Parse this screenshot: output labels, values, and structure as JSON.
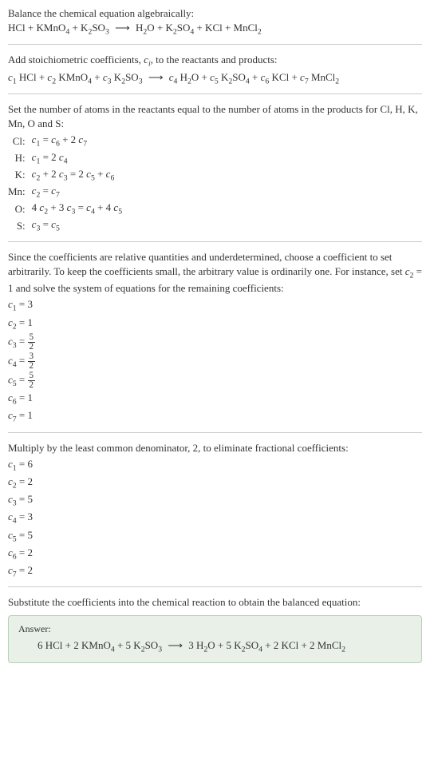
{
  "typography": {
    "font_family": "Georgia, serif",
    "base_font_size": 13,
    "text_color": "#333333",
    "background_color": "#ffffff",
    "divider_color": "#cccccc"
  },
  "answer_box_style": {
    "background_color": "#e8f0e8",
    "border_color": "#b8d0b8",
    "border_radius": 4
  },
  "section1": {
    "intro": "Balance the chemical equation algebraically:",
    "reaction": {
      "reactants": [
        "HCl",
        "KMnO₄",
        "K₂SO₃"
      ],
      "products": [
        "H₂O",
        "K₂SO₄",
        "KCl",
        "MnCl₂"
      ]
    }
  },
  "section2": {
    "intro_part1": "Add stoichiometric coefficients, ",
    "intro_var": "cᵢ",
    "intro_part2": ", to the reactants and products:",
    "reaction": {
      "reactant_coeffs": [
        "c₁",
        "c₂",
        "c₃"
      ],
      "reactants": [
        "HCl",
        "KMnO₄",
        "K₂SO₃"
      ],
      "product_coeffs": [
        "c₄",
        "c₅",
        "c₆",
        "c₇"
      ],
      "products": [
        "H₂O",
        "K₂SO₄",
        "KCl",
        "MnCl₂"
      ]
    }
  },
  "section3": {
    "intro": "Set the number of atoms in the reactants equal to the number of atoms in the products for Cl, H, K, Mn, O and S:",
    "equations": [
      {
        "label": "Cl:",
        "equation": "c₁ = c₆ + 2 c₇"
      },
      {
        "label": "H:",
        "equation": "c₁ = 2 c₄"
      },
      {
        "label": "K:",
        "equation": "c₂ + 2 c₃ = 2 c₅ + c₆"
      },
      {
        "label": "Mn:",
        "equation": "c₂ = c₇"
      },
      {
        "label": "O:",
        "equation": "4 c₂ + 3 c₃ = c₄ + 4 c₅"
      },
      {
        "label": "S:",
        "equation": "c₃ = c₅"
      }
    ]
  },
  "section4": {
    "intro_part1": "Since the coefficients are relative quantities and underdetermined, choose a coefficient to set arbitrarily. To keep the coefficients small, the arbitrary value is ordinarily one. For instance, set ",
    "intro_var": "c₂ = 1",
    "intro_part2": " and solve the system of equations for the remaining coefficients:",
    "coefficients": [
      {
        "var": "c₁",
        "value": "3",
        "is_frac": false
      },
      {
        "var": "c₂",
        "value": "1",
        "is_frac": false
      },
      {
        "var": "c₃",
        "num": "5",
        "den": "2",
        "is_frac": true
      },
      {
        "var": "c₄",
        "num": "3",
        "den": "2",
        "is_frac": true
      },
      {
        "var": "c₅",
        "num": "5",
        "den": "2",
        "is_frac": true
      },
      {
        "var": "c₆",
        "value": "1",
        "is_frac": false
      },
      {
        "var": "c₇",
        "value": "1",
        "is_frac": false
      }
    ]
  },
  "section5": {
    "intro": "Multiply by the least common denominator, 2, to eliminate fractional coefficients:",
    "coefficients": [
      {
        "var": "c₁",
        "value": "6"
      },
      {
        "var": "c₂",
        "value": "2"
      },
      {
        "var": "c₃",
        "value": "5"
      },
      {
        "var": "c₄",
        "value": "3"
      },
      {
        "var": "c₅",
        "value": "5"
      },
      {
        "var": "c₆",
        "value": "2"
      },
      {
        "var": "c₇",
        "value": "2"
      }
    ]
  },
  "section6": {
    "intro": "Substitute the coefficients into the chemical reaction to obtain the balanced equation:",
    "answer_label": "Answer:",
    "answer": {
      "reactant_coeffs": [
        "6",
        "2",
        "5"
      ],
      "reactants": [
        "HCl",
        "KMnO₄",
        "K₂SO₃"
      ],
      "product_coeffs": [
        "3",
        "5",
        "2",
        "2"
      ],
      "products": [
        "H₂O",
        "K₂SO₄",
        "KCl",
        "MnCl₂"
      ]
    }
  }
}
